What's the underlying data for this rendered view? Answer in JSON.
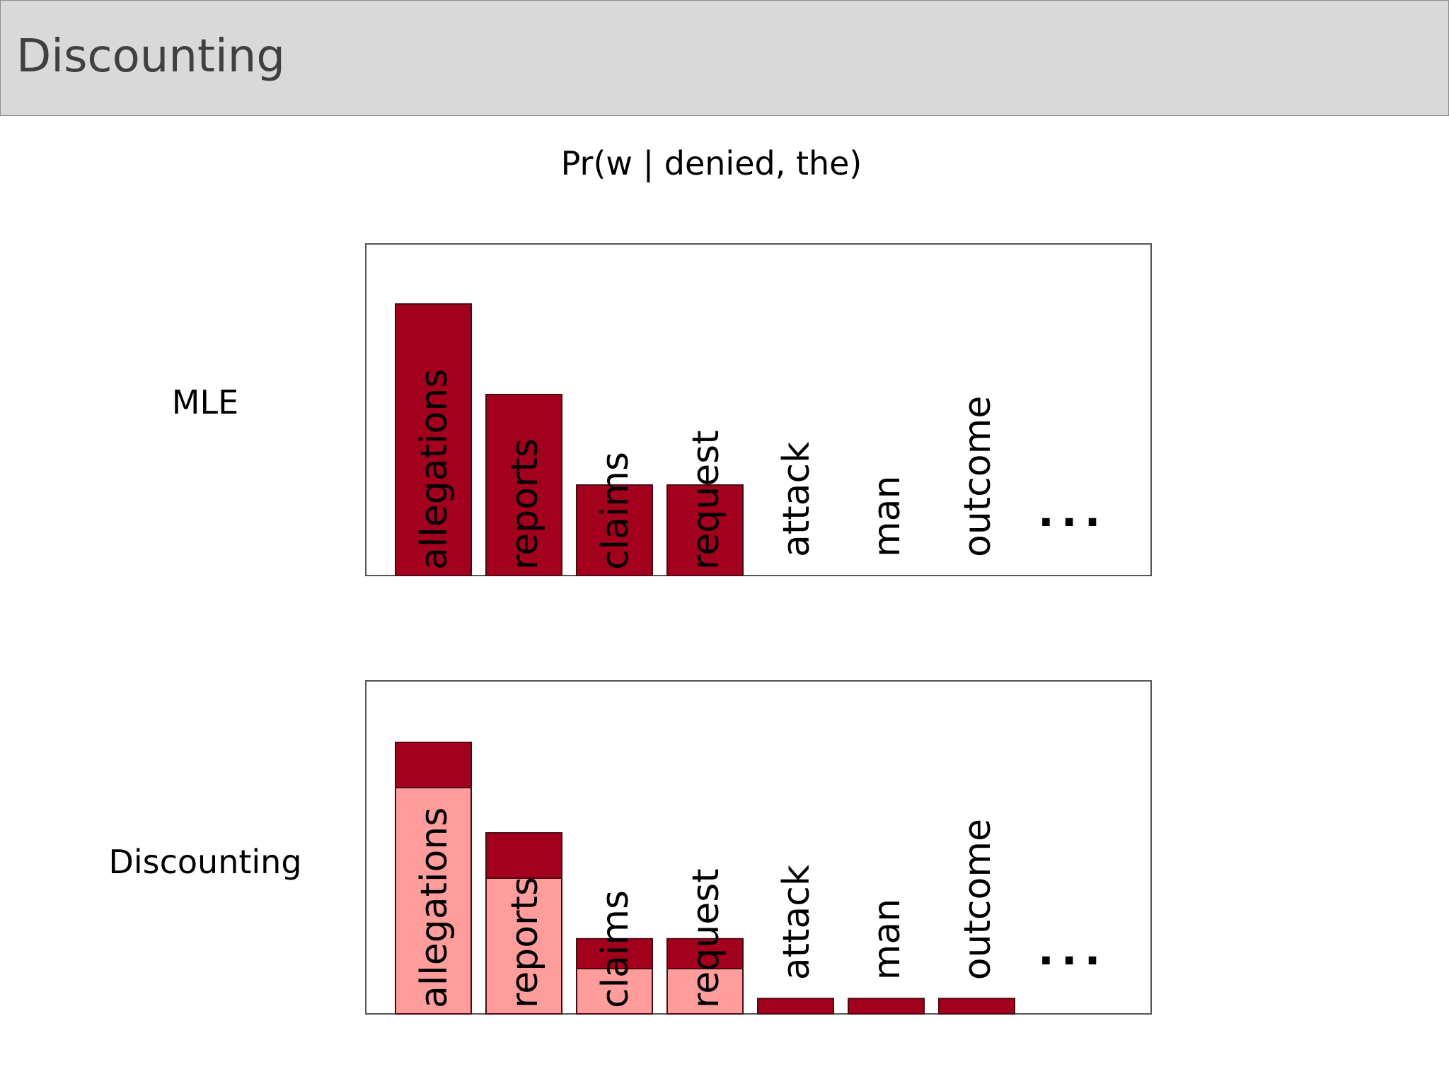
{
  "slide": {
    "title": "Discounting"
  },
  "chart_data": {
    "type": "bar",
    "title": "Pr(w | denied, the)",
    "categories": [
      "allegations",
      "reports",
      "claims",
      "request",
      "attack",
      "man",
      "outcome"
    ],
    "more_marker": "...",
    "ylim": [
      0,
      3.2
    ],
    "grid": false,
    "colors": {
      "observed": "#a3001e",
      "smoothed": "#ff9c9c",
      "border": "#4a0a12"
    },
    "panels": [
      {
        "label": "MLE",
        "series": [
          {
            "values": [
              3.0,
              2.0,
              1.0,
              1.0,
              0,
              0,
              0
            ]
          }
        ]
      },
      {
        "label": "Discounting",
        "series": [
          {
            "values": [
              2.5,
              1.5,
              0.5,
              0.5,
              0.0,
              0.0,
              0.0
            ]
          },
          {
            "values": [
              0.5,
              0.5,
              0.33,
              0.33,
              0.17,
              0.17,
              0.17
            ]
          }
        ]
      }
    ]
  }
}
